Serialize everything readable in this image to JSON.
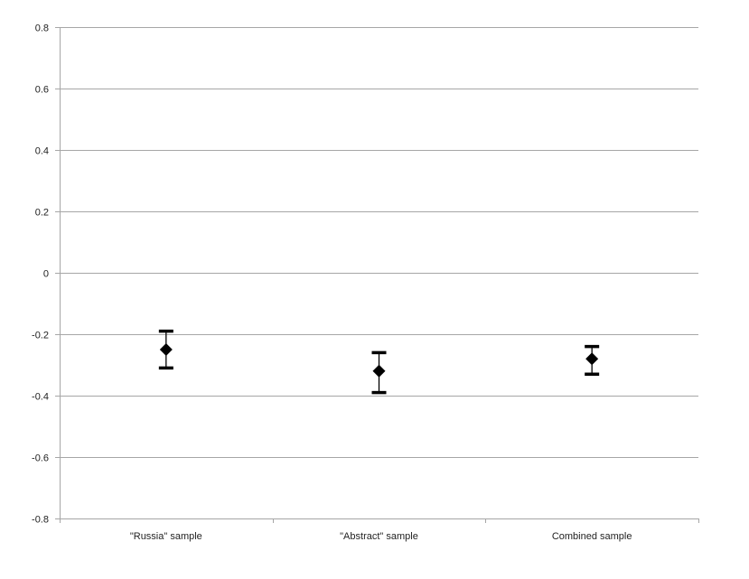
{
  "chart_data": {
    "type": "scatter",
    "categories": [
      "\"Russia\" sample",
      "\"Abstract\" sample",
      "Combined sample"
    ],
    "series": [
      {
        "values": [
          -0.25,
          -0.32,
          -0.28
        ],
        "error_low": [
          -0.31,
          -0.39,
          -0.33
        ],
        "error_high": [
          -0.19,
          -0.26,
          -0.24
        ],
        "marker": "diamond",
        "color": "#000000"
      }
    ],
    "ylim": [
      -0.8,
      0.8
    ],
    "yticks": [
      -0.8,
      -0.6,
      -0.4,
      -0.2,
      0,
      0.2,
      0.4,
      0.6,
      0.8
    ],
    "ytick_labels": [
      "-0.8",
      "-0.6",
      "-0.4",
      "-0.2",
      "0",
      "0.2",
      "0.4",
      "0.6",
      "0.8"
    ],
    "grid": true,
    "gridline_color": "#a6a6a6",
    "axis_color": "#a6a6a6",
    "title": "",
    "xlabel": "",
    "ylabel": ""
  }
}
